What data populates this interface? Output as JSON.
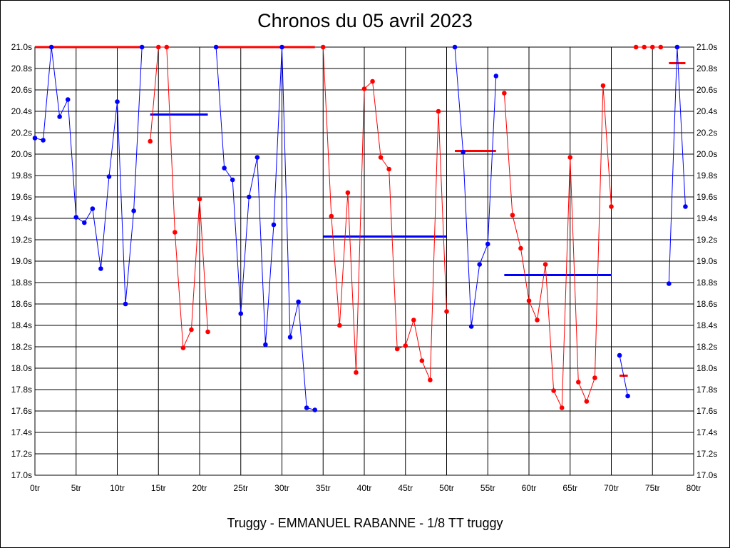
{
  "chart_data": {
    "type": "line",
    "title": "Chronos du 05 avril 2023",
    "subtitle": "Truggy - EMMANUEL RABANNE - 1/8 TT truggy",
    "xlabel": "",
    "ylabel": "",
    "xlim": [
      0,
      80
    ],
    "ylim": [
      17.0,
      21.0
    ],
    "x_ticks": [
      "0tr",
      "5tr",
      "10tr",
      "15tr",
      "20tr",
      "25tr",
      "30tr",
      "35tr",
      "40tr",
      "45tr",
      "50tr",
      "55tr",
      "60tr",
      "65tr",
      "70tr",
      "75tr",
      "80tr"
    ],
    "y_ticks": [
      "17.0s",
      "17.2s",
      "17.4s",
      "17.6s",
      "17.8s",
      "18.0s",
      "18.2s",
      "18.4s",
      "18.6s",
      "18.8s",
      "19.0s",
      "19.2s",
      "19.4s",
      "19.6s",
      "19.8s",
      "20.0s",
      "20.2s",
      "20.4s",
      "20.6s",
      "20.8s",
      "21.0s"
    ],
    "grid": true,
    "colors": {
      "blue": "#0000ff",
      "red": "#ff0000"
    },
    "series": [
      {
        "color": "blue",
        "points": [
          [
            0,
            20.15
          ],
          [
            1,
            20.13
          ],
          [
            2,
            21.0
          ],
          [
            3,
            20.35
          ],
          [
            4,
            20.51
          ],
          [
            5,
            19.41
          ],
          [
            6,
            19.36
          ],
          [
            7,
            19.49
          ],
          [
            8,
            18.93
          ],
          [
            9,
            19.79
          ],
          [
            10,
            20.49
          ],
          [
            11,
            18.6
          ],
          [
            12,
            19.47
          ],
          [
            13,
            21.0
          ]
        ]
      },
      {
        "color": "red",
        "points": [
          [
            14,
            20.12
          ],
          [
            15,
            21.0
          ],
          [
            16,
            21.0
          ],
          [
            17,
            19.27
          ],
          [
            18,
            18.19
          ],
          [
            19,
            18.36
          ],
          [
            20,
            19.58
          ],
          [
            21,
            18.34
          ]
        ]
      },
      {
        "color": "blue",
        "points": [
          [
            22,
            21.0
          ],
          [
            23,
            19.87
          ],
          [
            24,
            19.76
          ],
          [
            25,
            18.51
          ],
          [
            26,
            19.6
          ],
          [
            27,
            19.97
          ],
          [
            28,
            18.22
          ],
          [
            29,
            19.34
          ],
          [
            30,
            21.0
          ],
          [
            31,
            18.29
          ],
          [
            32,
            18.62
          ],
          [
            33,
            17.63
          ],
          [
            34,
            17.61
          ]
        ]
      },
      {
        "color": "red",
        "points": [
          [
            35,
            21.0
          ],
          [
            36,
            19.42
          ],
          [
            37,
            18.4
          ],
          [
            38,
            19.64
          ],
          [
            39,
            17.96
          ],
          [
            40,
            20.61
          ],
          [
            41,
            20.68
          ],
          [
            42,
            19.97
          ],
          [
            43,
            19.86
          ],
          [
            44,
            18.18
          ],
          [
            45,
            18.21
          ],
          [
            46,
            18.45
          ],
          [
            47,
            18.07
          ],
          [
            48,
            17.89
          ],
          [
            49,
            20.4
          ],
          [
            50,
            18.53
          ]
        ]
      },
      {
        "color": "blue",
        "points": [
          [
            51,
            21.0
          ],
          [
            52,
            20.02
          ],
          [
            53,
            18.39
          ],
          [
            54,
            18.97
          ],
          [
            55,
            19.16
          ],
          [
            56,
            20.73
          ]
        ]
      },
      {
        "color": "red",
        "points": [
          [
            57,
            20.57
          ],
          [
            58,
            19.43
          ],
          [
            59,
            19.12
          ],
          [
            60,
            18.63
          ],
          [
            61,
            18.45
          ],
          [
            62,
            18.97
          ],
          [
            63,
            17.79
          ],
          [
            64,
            17.63
          ],
          [
            65,
            19.97
          ],
          [
            66,
            17.87
          ],
          [
            67,
            17.69
          ],
          [
            68,
            17.91
          ],
          [
            69,
            20.64
          ],
          [
            70,
            19.51
          ]
        ]
      },
      {
        "color": "blue",
        "points": [
          [
            71,
            18.12
          ],
          [
            72,
            17.74
          ]
        ]
      },
      {
        "color": "red",
        "points": [
          [
            73,
            21.0
          ],
          [
            74,
            21.0
          ],
          [
            75,
            21.0
          ],
          [
            76,
            21.0
          ]
        ]
      },
      {
        "color": "blue",
        "points": [
          [
            77,
            18.79
          ],
          [
            78,
            21.0
          ],
          [
            79,
            19.51
          ]
        ]
      }
    ],
    "averages": [
      {
        "color": "red",
        "x_range": [
          0,
          13
        ],
        "value": 21.0
      },
      {
        "color": "blue",
        "x_range": [
          14,
          21
        ],
        "value": 20.37
      },
      {
        "color": "red",
        "x_range": [
          22,
          34
        ],
        "value": 21.0
      },
      {
        "color": "blue",
        "x_range": [
          35,
          50
        ],
        "value": 19.23
      },
      {
        "color": "red",
        "x_range": [
          51,
          56
        ],
        "value": 20.03
      },
      {
        "color": "blue",
        "x_range": [
          57,
          70
        ],
        "value": 18.87
      },
      {
        "color": "red",
        "x_range": [
          71,
          72
        ],
        "value": 17.93
      },
      {
        "color": "red",
        "x_range": [
          77,
          79
        ],
        "value": 20.85
      }
    ]
  }
}
